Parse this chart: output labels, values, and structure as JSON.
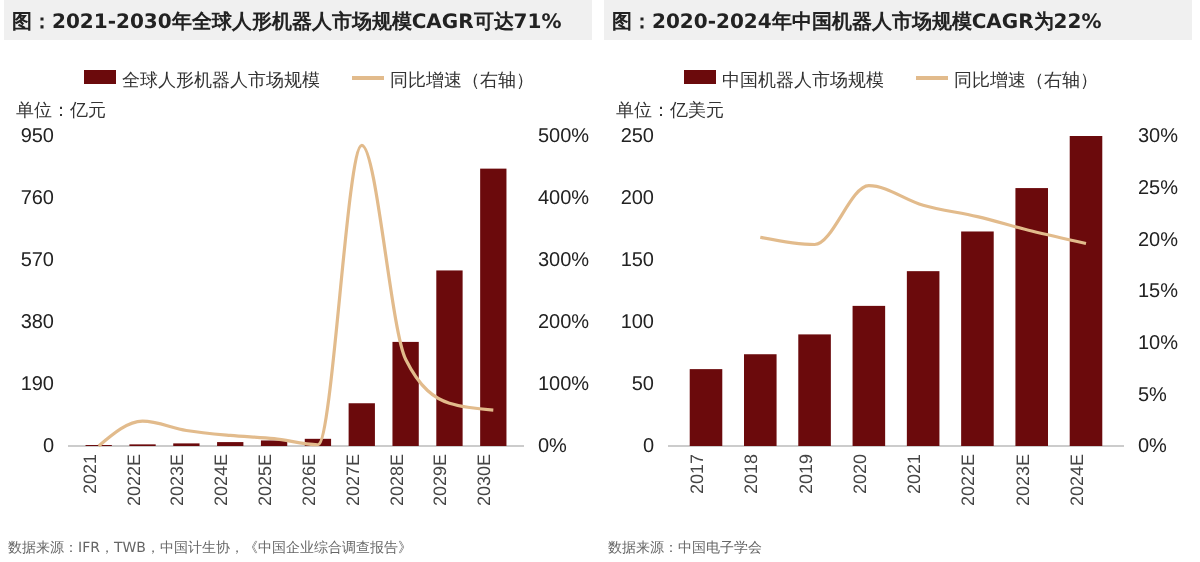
{
  "chart_data": [
    {
      "type": "bar",
      "title": "图：2021-2030年全球人形机器人市场规模CAGR可达71%",
      "ylabel": "单位：亿元",
      "legend": "top",
      "grid": false,
      "categories": [
        "2021",
        "2022E",
        "2023E",
        "2024E",
        "2025E",
        "2026E",
        "2027E",
        "2028E",
        "2029E",
        "2030E"
      ],
      "ylim": [
        0,
        950
      ],
      "yticks": [
        0,
        190,
        380,
        570,
        760,
        950
      ],
      "y2lim": [
        0,
        5
      ],
      "y2ticks": [
        {
          "value": 0,
          "label": "0%"
        },
        {
          "value": 1,
          "label": "100%"
        },
        {
          "value": 2,
          "label": "200%"
        },
        {
          "value": 3,
          "label": "300%"
        },
        {
          "value": 4,
          "label": "400%"
        },
        {
          "value": 5,
          "label": "500%"
        }
      ],
      "series": [
        {
          "name": "全球人形机器人市场规模",
          "color": "#6b0a0c",
          "values": [
            3,
            5,
            8,
            12,
            17,
            22,
            131,
            319,
            538,
            850
          ]
        },
        {
          "name": "同比增速（右轴）",
          "type": "line",
          "axis": "y2",
          "color": "#e2bb8c",
          "values": [
            0,
            0.4,
            0.25,
            0.17,
            0.12,
            0.02,
            4.85,
            1.4,
            0.69,
            0.58
          ]
        }
      ],
      "annotations": [
        "数据来源：IFR，TWB，中国计生协，《中国企业综合调查报告》"
      ]
    },
    {
      "type": "bar",
      "title": "图：2020-2024年中国机器人市场规模CAGR为22%",
      "ylabel": "单位：亿美元",
      "legend": "top",
      "grid": false,
      "categories": [
        "2017",
        "2018",
        "2019",
        "2020",
        "2021",
        "2022E",
        "2023E",
        "2024E"
      ],
      "ylim": [
        0,
        250
      ],
      "yticks": [
        0,
        50,
        100,
        150,
        200,
        250
      ],
      "y2lim": [
        0,
        0.3
      ],
      "y2ticks": [
        {
          "value": 0,
          "label": "0%"
        },
        {
          "value": 0.05,
          "label": "5%"
        },
        {
          "value": 0.1,
          "label": "10%"
        },
        {
          "value": 0.15,
          "label": "15%"
        },
        {
          "value": 0.2,
          "label": "20%"
        },
        {
          "value": 0.25,
          "label": "25%"
        },
        {
          "value": 0.3,
          "label": "30%"
        }
      ],
      "series": [
        {
          "name": "中国机器人市场规模",
          "color": "#6b0a0c",
          "values": [
            62,
            74,
            90,
            113,
            141,
            173,
            208,
            250
          ]
        },
        {
          "name": "同比增速（右轴）",
          "type": "line",
          "axis": "y2",
          "color": "#e2bb8c",
          "values": [
            null,
            0.202,
            0.195,
            0.252,
            0.233,
            0.222,
            0.208,
            0.196
          ]
        }
      ],
      "annotations": [
        "数据来源：中国电子学会"
      ]
    }
  ]
}
